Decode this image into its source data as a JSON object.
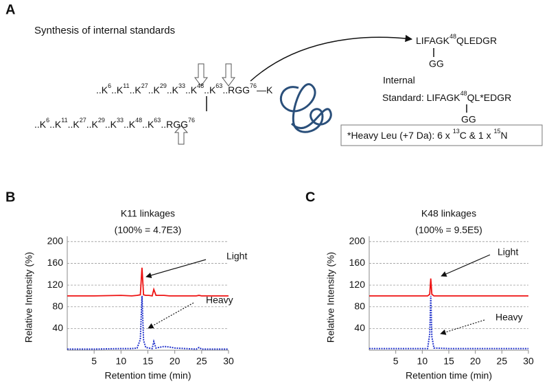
{
  "panels": {
    "a": "A",
    "b": "B",
    "c": "C"
  },
  "panel_a": {
    "title": "Synthesis of internal standards",
    "chain_top": [
      {
        "text": "..K"
      },
      {
        "sup": "6"
      },
      {
        "text": "..K"
      },
      {
        "sup": "11"
      },
      {
        "text": "..K"
      },
      {
        "sup": "27"
      },
      {
        "text": "..K"
      },
      {
        "sup": "29"
      },
      {
        "text": "..K"
      },
      {
        "sup": "33"
      },
      {
        "text": "..K"
      },
      {
        "sup": "48"
      },
      {
        "text": "..K"
      },
      {
        "sup": "63"
      },
      {
        "text": "..RGG"
      },
      {
        "sup": "76"
      },
      {
        "text": "—K"
      }
    ],
    "chain_bottom": [
      {
        "text": "..K"
      },
      {
        "sup": "6"
      },
      {
        "text": "..K"
      },
      {
        "sup": "11"
      },
      {
        "text": "..K"
      },
      {
        "sup": "27"
      },
      {
        "text": "..K"
      },
      {
        "sup": "29"
      },
      {
        "text": "..K"
      },
      {
        "sup": "33"
      },
      {
        "text": "..K"
      },
      {
        "sup": "48"
      },
      {
        "text": "..K"
      },
      {
        "sup": "63"
      },
      {
        "text": "..RGG"
      },
      {
        "sup": "76"
      }
    ],
    "peptide": [
      {
        "text": "LIFAGK"
      },
      {
        "sup": "48"
      },
      {
        "text": "QLEDGR"
      }
    ],
    "peptide_branch": "GG",
    "standard_label": "Internal",
    "standard": [
      {
        "text": "Standard: LIFAGK"
      },
      {
        "sup": "48"
      },
      {
        "text": "QL*EDGR"
      }
    ],
    "standard_branch": "GG",
    "note": [
      {
        "text": "*Heavy Leu (+7 Da): 6 x "
      },
      {
        "sup": "13"
      },
      {
        "text": "C & 1 x "
      },
      {
        "sup": "15"
      },
      {
        "text": "N"
      }
    ]
  },
  "chart_data": [
    {
      "type": "line",
      "title": "K11 linkages",
      "subtitle": "(100% = 4.7E3)",
      "x_label": "Retention time (min)",
      "y_label": "Relative Intensity (%)",
      "x": [
        0,
        5,
        10,
        12,
        13,
        13.6,
        13.9,
        14.2,
        14.6,
        15.2,
        15.8,
        16.1,
        16.5,
        18,
        19,
        20,
        24,
        24.5,
        25,
        30
      ],
      "series": [
        {
          "name": "Light",
          "color": "#ee1111",
          "style": "solid",
          "values": [
            100,
            100,
            101,
            100,
            101,
            102,
            152,
            102,
            101,
            101,
            100,
            112,
            101,
            101,
            100,
            100,
            100,
            101,
            100,
            100
          ]
        },
        {
          "name": "Heavy",
          "color": "#2233cc",
          "style": "dotted",
          "values": [
            2,
            2,
            3,
            3,
            4,
            20,
            100,
            18,
            5,
            4,
            3,
            16,
            4,
            7,
            6,
            4,
            2,
            5,
            2,
            2
          ]
        }
      ],
      "xlim": [
        0,
        30
      ],
      "xticks": [
        5,
        10,
        15,
        20,
        25,
        30
      ],
      "ylim": [
        0,
        220
      ],
      "yticks": [
        40,
        80,
        120,
        160,
        200
      ],
      "grid": true
    },
    {
      "type": "line",
      "title": "K48 linkages",
      "subtitle": "(100% = 9.5E5)",
      "x_label": "Retention time (min)",
      "y_label": "Relative Intensity (%)",
      "x": [
        0,
        5,
        10,
        11,
        11.4,
        11.6,
        11.8,
        12.2,
        15,
        20,
        25,
        30
      ],
      "series": [
        {
          "name": "Light",
          "color": "#ee1111",
          "style": "solid",
          "values": [
            100,
            100,
            100,
            100,
            103,
            132,
            103,
            100,
            100,
            100,
            100,
            100
          ]
        },
        {
          "name": "Heavy",
          "color": "#2233cc",
          "style": "dotted",
          "values": [
            3,
            3,
            3,
            3,
            30,
            100,
            25,
            4,
            3,
            3,
            3,
            3
          ]
        }
      ],
      "xlim": [
        0,
        30
      ],
      "xticks": [
        5,
        10,
        15,
        20,
        25,
        30
      ],
      "ylim": [
        0,
        220
      ],
      "yticks": [
        40,
        80,
        120,
        160,
        200
      ],
      "grid": true
    }
  ]
}
